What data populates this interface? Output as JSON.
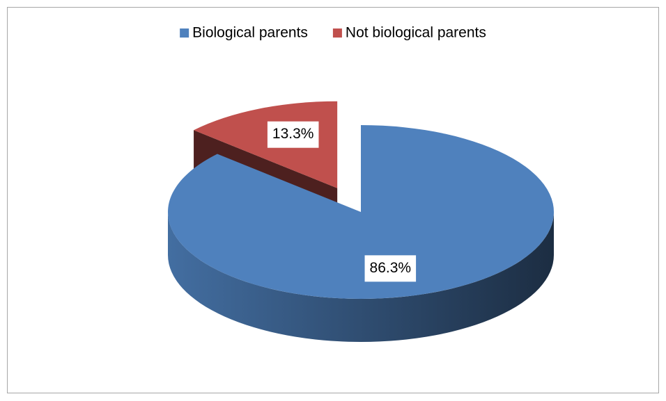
{
  "chart_data": {
    "type": "pie",
    "three_d": true,
    "legend": "top",
    "categories": [
      "Biological parents",
      "Not biological parents"
    ],
    "values": [
      86.3,
      13.3
    ],
    "value_labels": [
      "86.3%",
      "13.3%"
    ],
    "colors": [
      "#4f81bd",
      "#c0504d"
    ]
  }
}
